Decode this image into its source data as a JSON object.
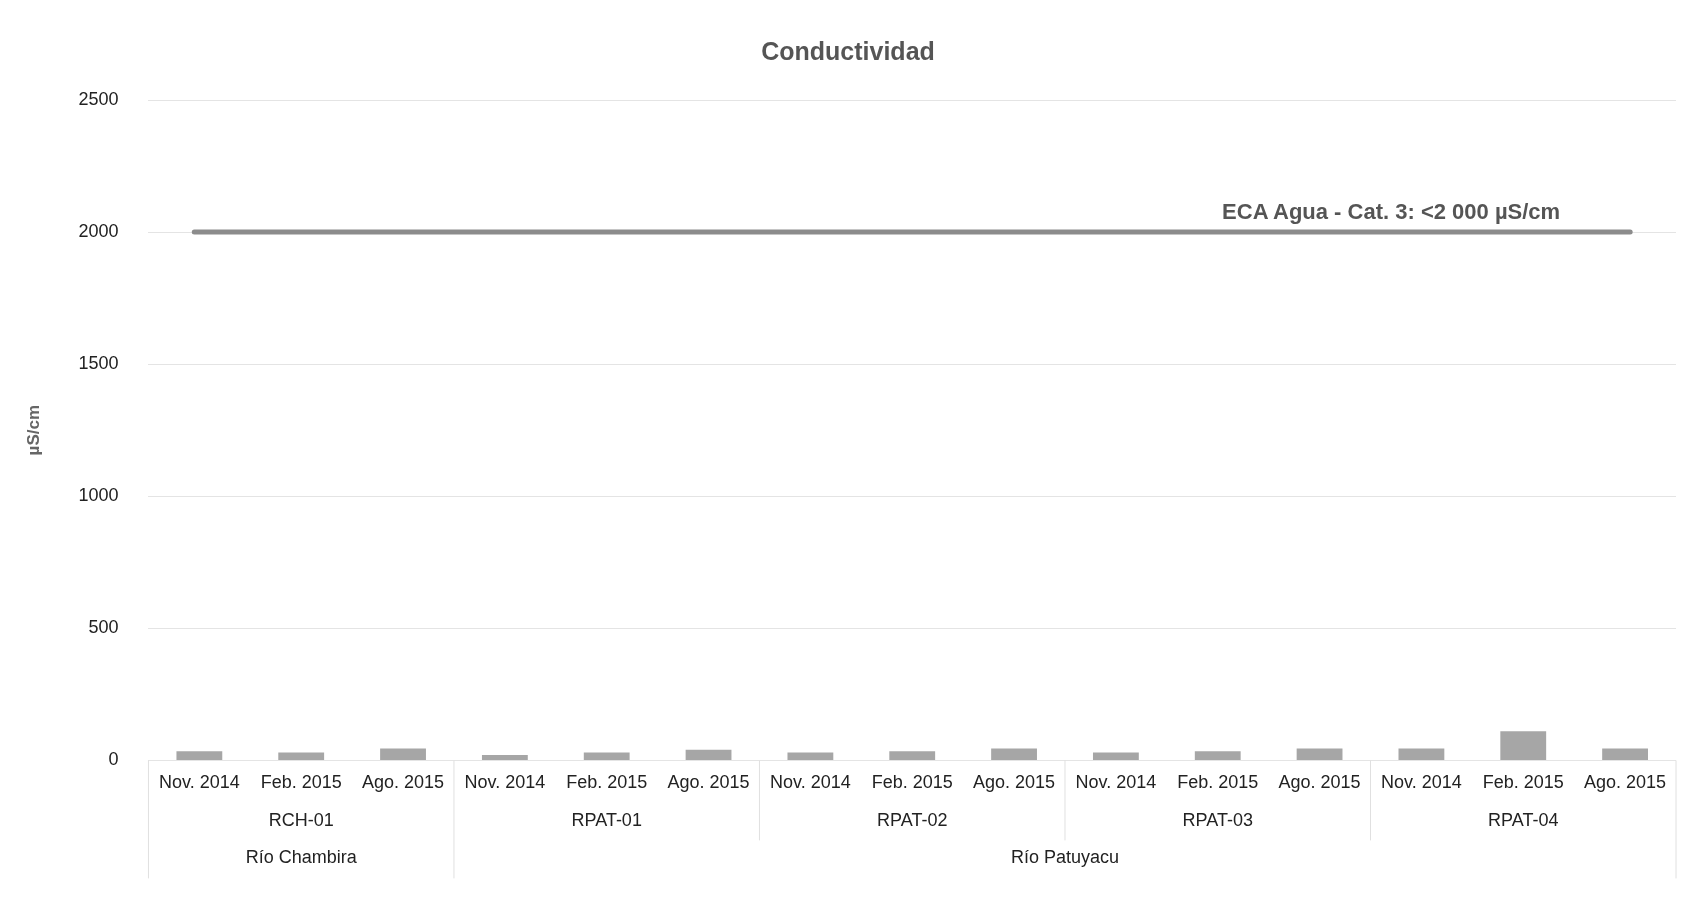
{
  "chart_data": {
    "type": "bar",
    "title": "Conductividad",
    "ylabel": "µS/cm",
    "categories": [
      "Nov. 2014",
      "Feb. 2015",
      "Ago. 2015",
      "Nov. 2014",
      "Feb. 2015",
      "Ago. 2015",
      "Nov. 2014",
      "Feb. 2015",
      "Ago. 2015",
      "Nov. 2014",
      "Feb. 2015",
      "Ago. 2015",
      "Nov. 2014",
      "Feb. 2015",
      "Ago. 2015"
    ],
    "series": [
      {
        "color": "#a6a6a6",
        "values": [
          35,
          30,
          45,
          20,
          30,
          40,
          30,
          35,
          45,
          30,
          35,
          45,
          45,
          110,
          45
        ]
      }
    ],
    "ylim": [
      0,
      2500
    ],
    "yticks": [
      0,
      500,
      1000,
      1500,
      2000,
      2500
    ],
    "grid": "y",
    "legend": false,
    "ref_lines": [
      {
        "axis": "y",
        "value": 2000,
        "label": "ECA Agua - Cat. 3: <2 000 µS/cm",
        "color": "#8c8c8c"
      }
    ],
    "annotations": [
      "RCH-01",
      "RPAT-01",
      "RPAT-02",
      "RPAT-03",
      "RPAT-04",
      "Río Chambira",
      "Río Patuyacu"
    ]
  }
}
